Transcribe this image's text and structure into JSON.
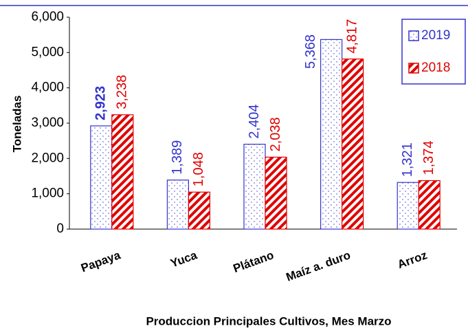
{
  "chart_data": {
    "type": "bar",
    "title": "Produccion Principales Cultivos, Mes  Marzo",
    "y_label": "Toneladas",
    "categories": [
      "Papaya",
      "Yuca",
      "Plátano",
      "Maíz a. duro",
      "Arroz"
    ],
    "series": [
      {
        "name": "2019",
        "color": "#3333cc",
        "values": [
          2923,
          1389,
          2404,
          5368,
          1321
        ],
        "value_labels": [
          "2,923",
          "1,389",
          "2,404",
          "5,368",
          "1,321"
        ]
      },
      {
        "name": "2018",
        "color": "#e00000",
        "values": [
          3238,
          1048,
          2038,
          4817,
          1374
        ],
        "value_labels": [
          "3,238",
          "1,048",
          "2,038",
          "4,817",
          "1,374"
        ]
      }
    ],
    "ylim": [
      0,
      6000
    ],
    "yticks": [
      0,
      {
        "value": 1000,
        "label": "1,000"
      },
      {
        "value": 2000,
        "label": "2,000"
      },
      {
        "value": 3000,
        "label": "3,000"
      },
      {
        "value": 4000,
        "label": "4,000"
      },
      {
        "value": 5000,
        "label": "5,000"
      },
      {
        "value": 6000,
        "label": "6,000"
      }
    ],
    "grid": false,
    "legend": "upper right"
  }
}
